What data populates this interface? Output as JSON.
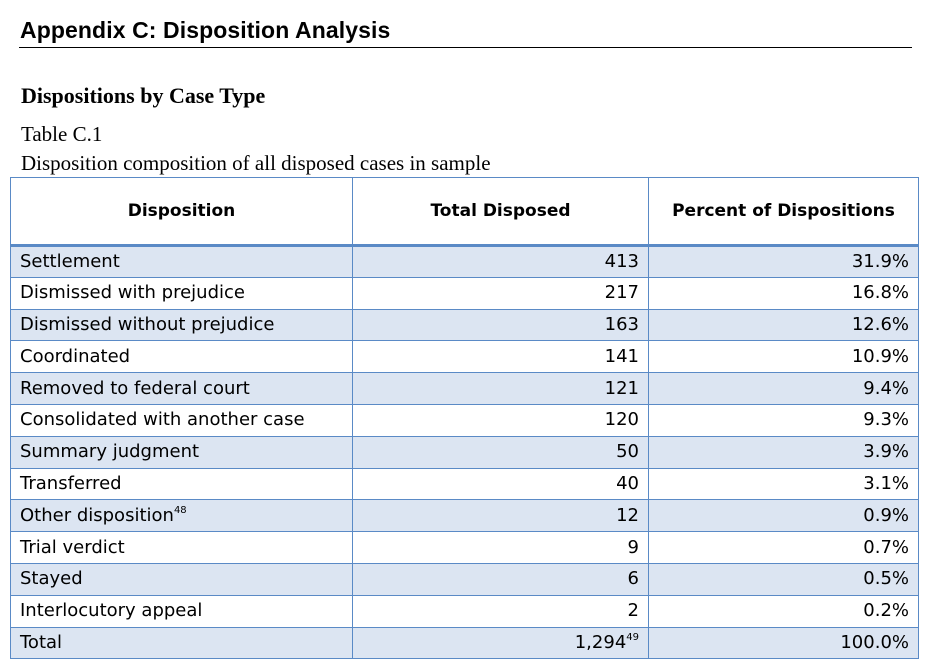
{
  "document": {
    "appendix_title": "Appendix C: Disposition Analysis",
    "section_heading": "Dispositions by Case Type",
    "table_label": "Table C.1",
    "table_caption": "Disposition composition of all disposed cases in sample"
  },
  "table": {
    "headers": [
      "Disposition",
      "Total Disposed",
      "Percent of Dispositions"
    ],
    "rows": [
      {
        "disposition": "Settlement",
        "footnote": "",
        "total": "413",
        "total_footnote": "",
        "percent": "31.9%"
      },
      {
        "disposition": "Dismissed with prejudice",
        "footnote": "",
        "total": "217",
        "total_footnote": "",
        "percent": "16.8%"
      },
      {
        "disposition": "Dismissed without prejudice",
        "footnote": "",
        "total": "163",
        "total_footnote": "",
        "percent": "12.6%"
      },
      {
        "disposition": "Coordinated",
        "footnote": "",
        "total": "141",
        "total_footnote": "",
        "percent": "10.9%"
      },
      {
        "disposition": "Removed to federal court",
        "footnote": "",
        "total": "121",
        "total_footnote": "",
        "percent": "9.4%"
      },
      {
        "disposition": "Consolidated with another case",
        "footnote": "",
        "total": "120",
        "total_footnote": "",
        "percent": "9.3%"
      },
      {
        "disposition": "Summary judgment",
        "footnote": "",
        "total": "50",
        "total_footnote": "",
        "percent": "3.9%"
      },
      {
        "disposition": "Transferred",
        "footnote": "",
        "total": "40",
        "total_footnote": "",
        "percent": "3.1%"
      },
      {
        "disposition": "Other disposition",
        "footnote": "48",
        "total": "12",
        "total_footnote": "",
        "percent": "0.9%"
      },
      {
        "disposition": "Trial verdict",
        "footnote": "",
        "total": "9",
        "total_footnote": "",
        "percent": "0.7%"
      },
      {
        "disposition": "Stayed",
        "footnote": "",
        "total": "6",
        "total_footnote": "",
        "percent": "0.5%"
      },
      {
        "disposition": "Interlocutory appeal",
        "footnote": "",
        "total": "2",
        "total_footnote": "",
        "percent": "0.2%"
      },
      {
        "disposition": "Total",
        "footnote": "",
        "total": "1,294",
        "total_footnote": "49",
        "percent": "100.0%"
      }
    ]
  },
  "colors": {
    "border": "#5a8ac6",
    "shaded_row": "#dce5f2"
  }
}
